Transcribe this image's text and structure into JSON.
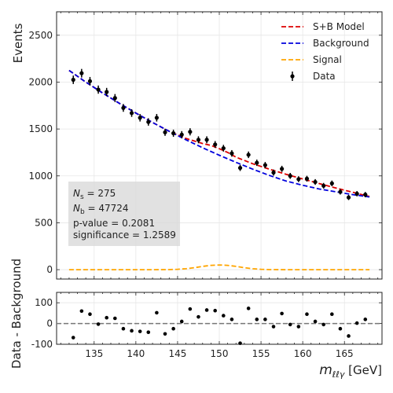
{
  "chart_data": [
    {
      "type": "scatter",
      "panel": "main",
      "title": "",
      "xlabel": "",
      "ylabel": "Events",
      "xlim": [
        130.5,
        169.5
      ],
      "ylim": [
        -100,
        2750
      ],
      "yticks": [
        0,
        500,
        1000,
        1500,
        2000,
        2500
      ],
      "grid": true,
      "legend_position": "top-right",
      "legend": [
        "S+B Model",
        "Background",
        "Signal",
        "Data"
      ],
      "series": [
        {
          "name": "Data",
          "style": "points-with-errorbars",
          "color": "#000000",
          "x": [
            132.5,
            133.5,
            134.5,
            135.5,
            136.5,
            137.5,
            138.5,
            139.5,
            140.5,
            141.5,
            142.5,
            143.5,
            144.5,
            145.5,
            146.5,
            147.5,
            148.5,
            149.5,
            150.5,
            151.5,
            152.5,
            153.5,
            154.5,
            155.5,
            156.5,
            157.5,
            158.5,
            159.5,
            160.5,
            161.5,
            162.5,
            163.5,
            164.5,
            165.5,
            166.5,
            167.5
          ],
          "y": [
            2025,
            2095,
            2010,
            1920,
            1895,
            1830,
            1725,
            1670,
            1620,
            1575,
            1620,
            1465,
            1455,
            1440,
            1470,
            1385,
            1385,
            1335,
            1295,
            1240,
            1085,
            1225,
            1140,
            1115,
            1035,
            1075,
            1000,
            965,
            970,
            935,
            895,
            920,
            830,
            770,
            810,
            800
          ]
        },
        {
          "name": "S+B Model",
          "style": "dashed-line",
          "color": "#dd0000",
          "x": [
            132,
            134,
            136,
            138,
            140,
            142,
            144,
            146,
            148,
            149,
            150,
            151,
            152,
            154,
            156,
            158,
            160,
            162,
            164,
            166,
            168
          ],
          "y": [
            2125,
            2000,
            1885,
            1775,
            1670,
            1570,
            1475,
            1400,
            1345,
            1325,
            1290,
            1250,
            1200,
            1130,
            1072,
            1017,
            967,
            918,
            870,
            825,
            780
          ]
        },
        {
          "name": "Background",
          "style": "dashed-line",
          "color": "#0000dd",
          "x": [
            132,
            134,
            136,
            138,
            140,
            142,
            144,
            146,
            148,
            150,
            152,
            154,
            156,
            158,
            160,
            162,
            164,
            166,
            168
          ],
          "y": [
            2125,
            2000,
            1885,
            1775,
            1670,
            1570,
            1475,
            1385,
            1300,
            1220,
            1145,
            1072,
            1005,
            945,
            900,
            860,
            830,
            800,
            775
          ]
        },
        {
          "name": "Signal",
          "style": "dashed-line",
          "color": "#ffa500",
          "x": [
            132,
            138,
            142,
            144,
            145,
            146,
            147,
            148,
            149,
            150,
            151,
            152,
            153,
            154,
            155,
            156,
            158,
            162,
            168
          ],
          "y": [
            0,
            0,
            0,
            1,
            4,
            10,
            21,
            35,
            46,
            50,
            46,
            35,
            21,
            10,
            4,
            1,
            0,
            0,
            0
          ]
        }
      ],
      "annotation": {
        "ns_label": "N",
        "ns_sub": "s",
        "ns_value": " = 275",
        "nb_label": "N",
        "nb_sub": "b",
        "nb_value": " = 47724",
        "pvalue": "p-value = 0.2081",
        "significance": "significance = 1.2589"
      }
    },
    {
      "type": "scatter",
      "panel": "residual",
      "title": "",
      "xlabel_main": "m",
      "xlabel_sub": "ℓℓγ",
      "xlabel_unit": " [GeV]",
      "ylabel": "Data - Background",
      "xlim": [
        130.5,
        169.5
      ],
      "ylim": [
        -100,
        150
      ],
      "xticks": [
        135,
        140,
        145,
        150,
        155,
        160,
        165
      ],
      "yticks": [
        -100,
        0,
        100
      ],
      "reference_line": 0,
      "grid": true,
      "series": [
        {
          "name": "Data - Background",
          "color": "#000000",
          "x": [
            132.5,
            133.5,
            134.5,
            135.5,
            136.5,
            137.5,
            138.5,
            139.5,
            140.5,
            141.5,
            142.5,
            143.5,
            144.5,
            145.5,
            146.5,
            147.5,
            148.5,
            149.5,
            150.5,
            151.5,
            152.5,
            153.5,
            154.5,
            155.5,
            156.5,
            157.5,
            158.5,
            159.5,
            160.5,
            161.5,
            162.5,
            163.5,
            164.5,
            165.5,
            166.5,
            167.5
          ],
          "y": [
            -68,
            60,
            45,
            -3,
            28,
            25,
            -25,
            -35,
            -38,
            -42,
            52,
            -50,
            -25,
            10,
            70,
            32,
            65,
            62,
            38,
            20,
            -95,
            73,
            20,
            20,
            -15,
            48,
            -5,
            -15,
            45,
            10,
            -5,
            45,
            -25,
            -60,
            2,
            20
          ]
        }
      ]
    }
  ]
}
